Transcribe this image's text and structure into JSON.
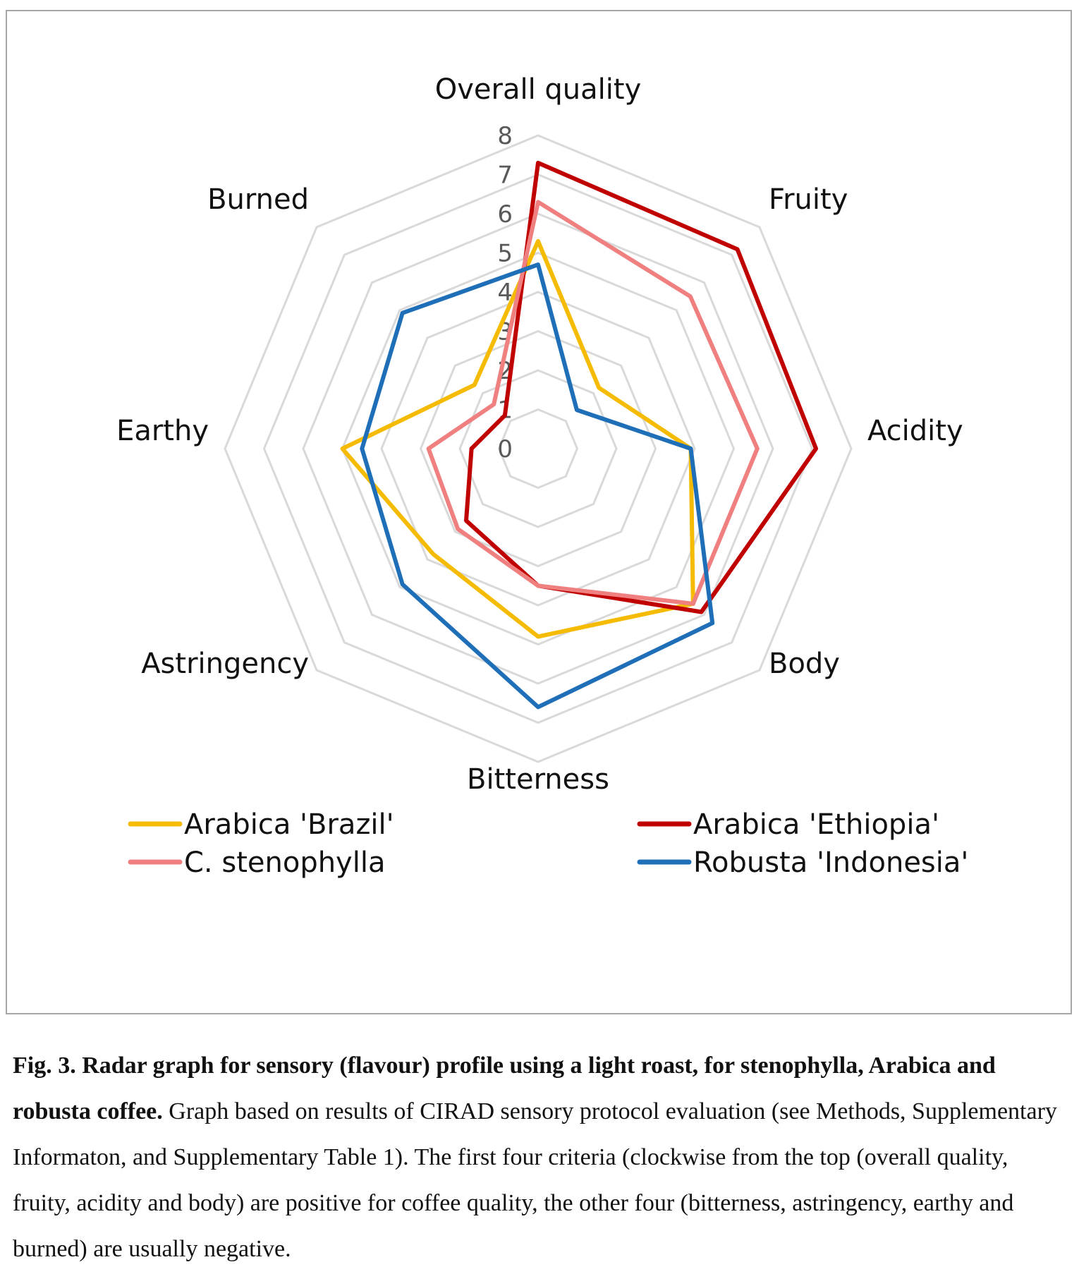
{
  "chart_data": {
    "type": "radar",
    "axes": [
      "Overall quality",
      "Fruity",
      "Acidity",
      "Body",
      "Bitterness",
      "Astringency",
      "Earthy",
      "Burned"
    ],
    "rlim": [
      0,
      8
    ],
    "ticks": [
      "0",
      "1",
      "2",
      "3",
      "4",
      "5",
      "6",
      "7",
      "8"
    ],
    "series": [
      {
        "name": "Arabica 'Brazil'",
        "color": "#f5bb00",
        "values": [
          5.3,
          2.2,
          3.9,
          5.6,
          4.8,
          3.8,
          5.0,
          2.3
        ]
      },
      {
        "name": "Arabica 'Ethiopia'",
        "color": "#c00000",
        "values": [
          7.3,
          7.2,
          7.1,
          5.9,
          3.5,
          2.6,
          1.7,
          1.2
        ]
      },
      {
        "name": "C. stenophylla",
        "color": "#f08080",
        "values": [
          6.3,
          5.5,
          5.6,
          5.6,
          3.5,
          2.9,
          2.8,
          1.6
        ]
      },
      {
        "name": "Robusta 'Indonesia'",
        "color": "#1f6fb8",
        "values": [
          4.7,
          1.4,
          3.9,
          6.3,
          6.6,
          4.9,
          4.5,
          4.9
        ]
      }
    ],
    "legend_position": "bottom"
  },
  "caption": {
    "bold_text": "Fig. 3. Radar graph for sensory (flavour) profile using a light roast, for stenophylla, Arabica and robusta coffee.",
    "normal_text": " Graph based on results of CIRAD sensory protocol evaluation (see Methods, Supplementary Informaton, and Supplementary Table 1). The first four criteria (clockwise from the top (overall quality, fruity, acidity and body) are positive for coffee quality, the other four (bitterness, astringency, earthy and burned) are usually negative."
  }
}
